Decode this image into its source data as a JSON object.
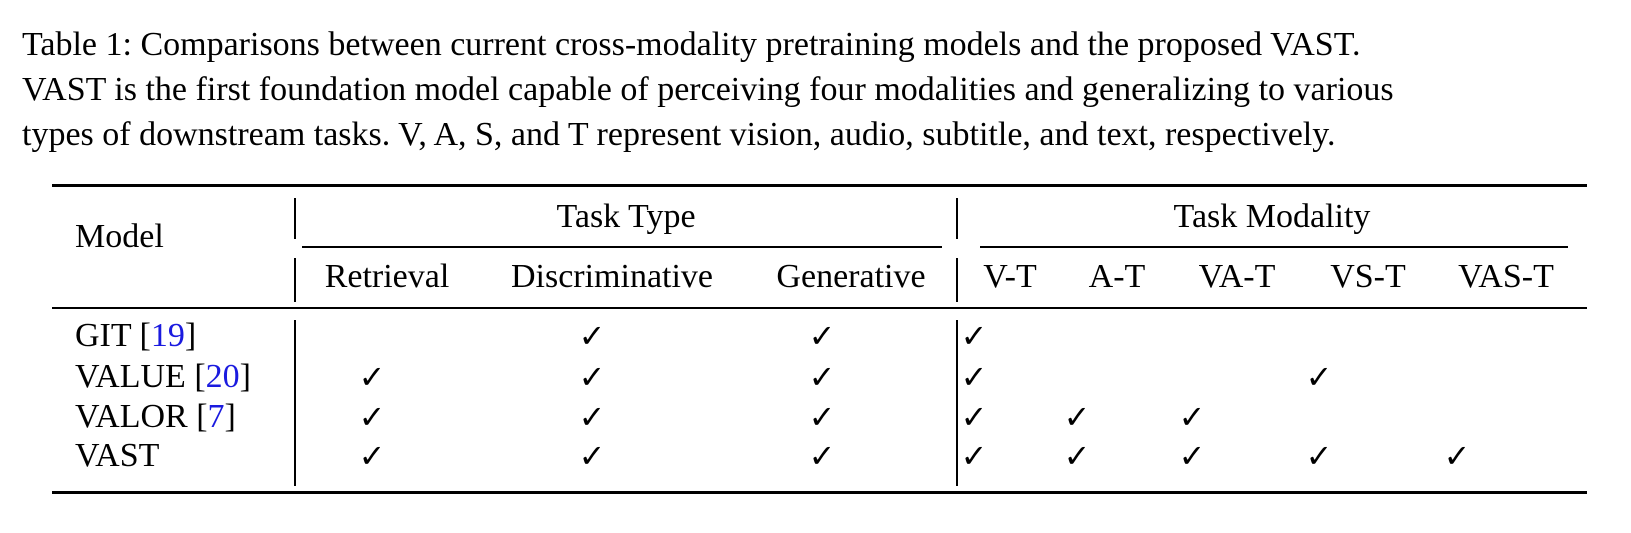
{
  "caption": {
    "lines": [
      "Table 1: Comparisons between current cross-modality pretraining models and the proposed VAST.",
      "VAST is the first foundation model capable of perceiving four modalities and generalizing to various",
      "types of downstream tasks. V, A, S, and T represent vision, audio, subtitle, and text, respectively."
    ]
  },
  "table": {
    "model_header": "Model",
    "group_headers": [
      "Task Type",
      "Task Modality"
    ],
    "columns": [
      "Retrieval",
      "Discriminative",
      "Generative",
      "V-T",
      "A-T",
      "VA-T",
      "VS-T",
      "VAS-T"
    ],
    "check_symbol": "✓",
    "rows": [
      {
        "model": "GIT [",
        "ref": "19",
        "close": "]",
        "checks": [
          false,
          true,
          true,
          true,
          false,
          false,
          false,
          false
        ]
      },
      {
        "model": "VALUE [",
        "ref": "20",
        "close": "]",
        "checks": [
          true,
          true,
          true,
          true,
          false,
          false,
          true,
          false
        ]
      },
      {
        "model": "VALOR [",
        "ref": "7",
        "close": "]",
        "checks": [
          true,
          true,
          true,
          true,
          true,
          true,
          false,
          false
        ]
      },
      {
        "model": "VAST",
        "ref": "",
        "close": "",
        "checks": [
          true,
          true,
          true,
          true,
          true,
          true,
          true,
          true
        ]
      }
    ]
  }
}
